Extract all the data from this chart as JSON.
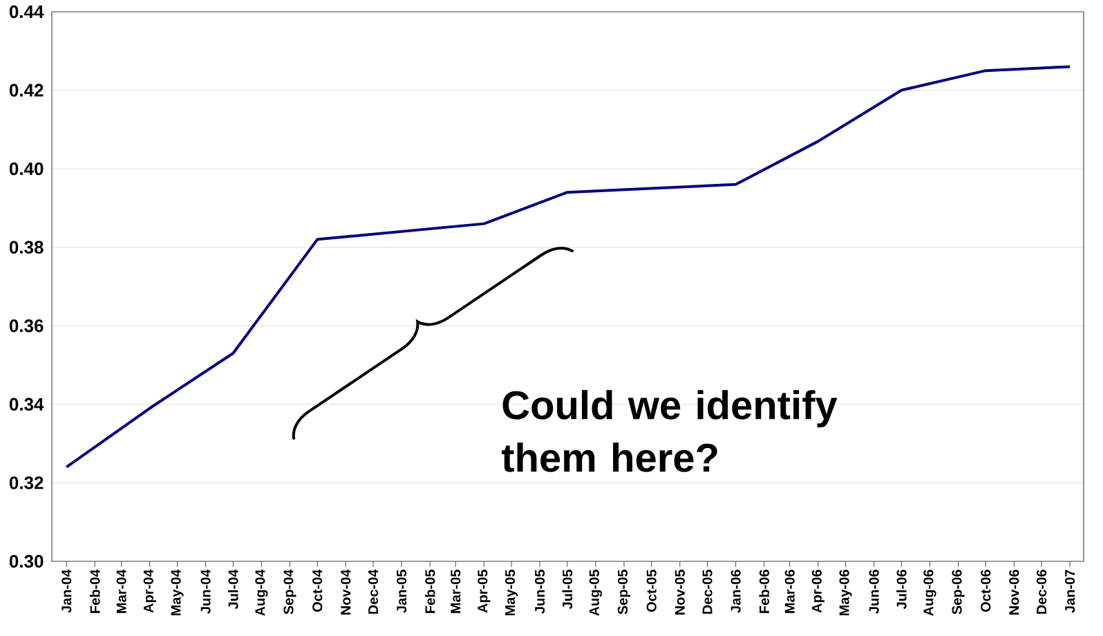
{
  "chart_data": {
    "type": "line",
    "color": "#000080",
    "x": [
      "2004-01",
      "2004-04",
      "2004-07",
      "2004-10",
      "2005-04",
      "2005-07",
      "2005-10",
      "2006-01",
      "2006-04",
      "2006-07",
      "2006-10",
      "2007-01"
    ],
    "values": [
      0.324,
      0.339,
      0.353,
      0.382,
      0.386,
      0.394,
      0.395,
      0.396,
      0.407,
      0.42,
      0.425,
      0.426
    ],
    "xlim": [
      "2003-12-16",
      "2007-01-16"
    ],
    "xticks": [
      {
        "value": "2004-01",
        "label": "Jan-04"
      },
      {
        "value": "2004-02",
        "label": "Feb-04"
      },
      {
        "value": "2004-03",
        "label": "Mar-04"
      },
      {
        "value": "2004-04",
        "label": "Apr-04"
      },
      {
        "value": "2004-05",
        "label": "May-04"
      },
      {
        "value": "2004-06",
        "label": "Jun-04"
      },
      {
        "value": "2004-07",
        "label": "Jul-04"
      },
      {
        "value": "2004-08",
        "label": "Aug-04"
      },
      {
        "value": "2004-09",
        "label": "Sep-04"
      },
      {
        "value": "2004-10",
        "label": "Oct-04"
      },
      {
        "value": "2004-11",
        "label": "Nov-04"
      },
      {
        "value": "2004-12",
        "label": "Dec-04"
      },
      {
        "value": "2005-01",
        "label": "Jan-05"
      },
      {
        "value": "2005-02",
        "label": "Feb-05"
      },
      {
        "value": "2005-03",
        "label": "Mar-05"
      },
      {
        "value": "2005-04",
        "label": "Apr-05"
      },
      {
        "value": "2005-05",
        "label": "May-05"
      },
      {
        "value": "2005-06",
        "label": "Jun-05"
      },
      {
        "value": "2005-07",
        "label": "Jul-05"
      },
      {
        "value": "2005-08",
        "label": "Aug-05"
      },
      {
        "value": "2005-09",
        "label": "Sep-05"
      },
      {
        "value": "2005-10",
        "label": "Oct-05"
      },
      {
        "value": "2005-11",
        "label": "Nov-05"
      },
      {
        "value": "2005-12",
        "label": "Dec-05"
      },
      {
        "value": "2006-01",
        "label": "Jan-06"
      },
      {
        "value": "2006-02",
        "label": "Feb-06"
      },
      {
        "value": "2006-03",
        "label": "Mar-06"
      },
      {
        "value": "2006-04",
        "label": "Apr-06"
      },
      {
        "value": "2006-05",
        "label": "May-06"
      },
      {
        "value": "2006-06",
        "label": "Jun-06"
      },
      {
        "value": "2006-07",
        "label": "Jul-06"
      },
      {
        "value": "2006-08",
        "label": "Aug-06"
      },
      {
        "value": "2006-09",
        "label": "Sep-06"
      },
      {
        "value": "2006-10",
        "label": "Oct-06"
      },
      {
        "value": "2006-11",
        "label": "Nov-06"
      },
      {
        "value": "2006-12",
        "label": "Dec-06"
      },
      {
        "value": "2007-01",
        "label": "Jan-07"
      }
    ],
    "ylim": [
      0.3,
      0.44
    ],
    "yticks": [
      {
        "value": 0.3,
        "label": "0.30"
      },
      {
        "value": 0.32,
        "label": "0.32"
      },
      {
        "value": 0.34,
        "label": "0.34"
      },
      {
        "value": 0.36,
        "label": "0.36"
      },
      {
        "value": 0.38,
        "label": "0.38"
      },
      {
        "value": 0.4,
        "label": "0.40"
      },
      {
        "value": 0.42,
        "label": "0.42"
      },
      {
        "value": 0.44,
        "label": "0.44"
      }
    ],
    "grid": "y",
    "annotations": [
      "Could we identify them here?"
    ]
  }
}
